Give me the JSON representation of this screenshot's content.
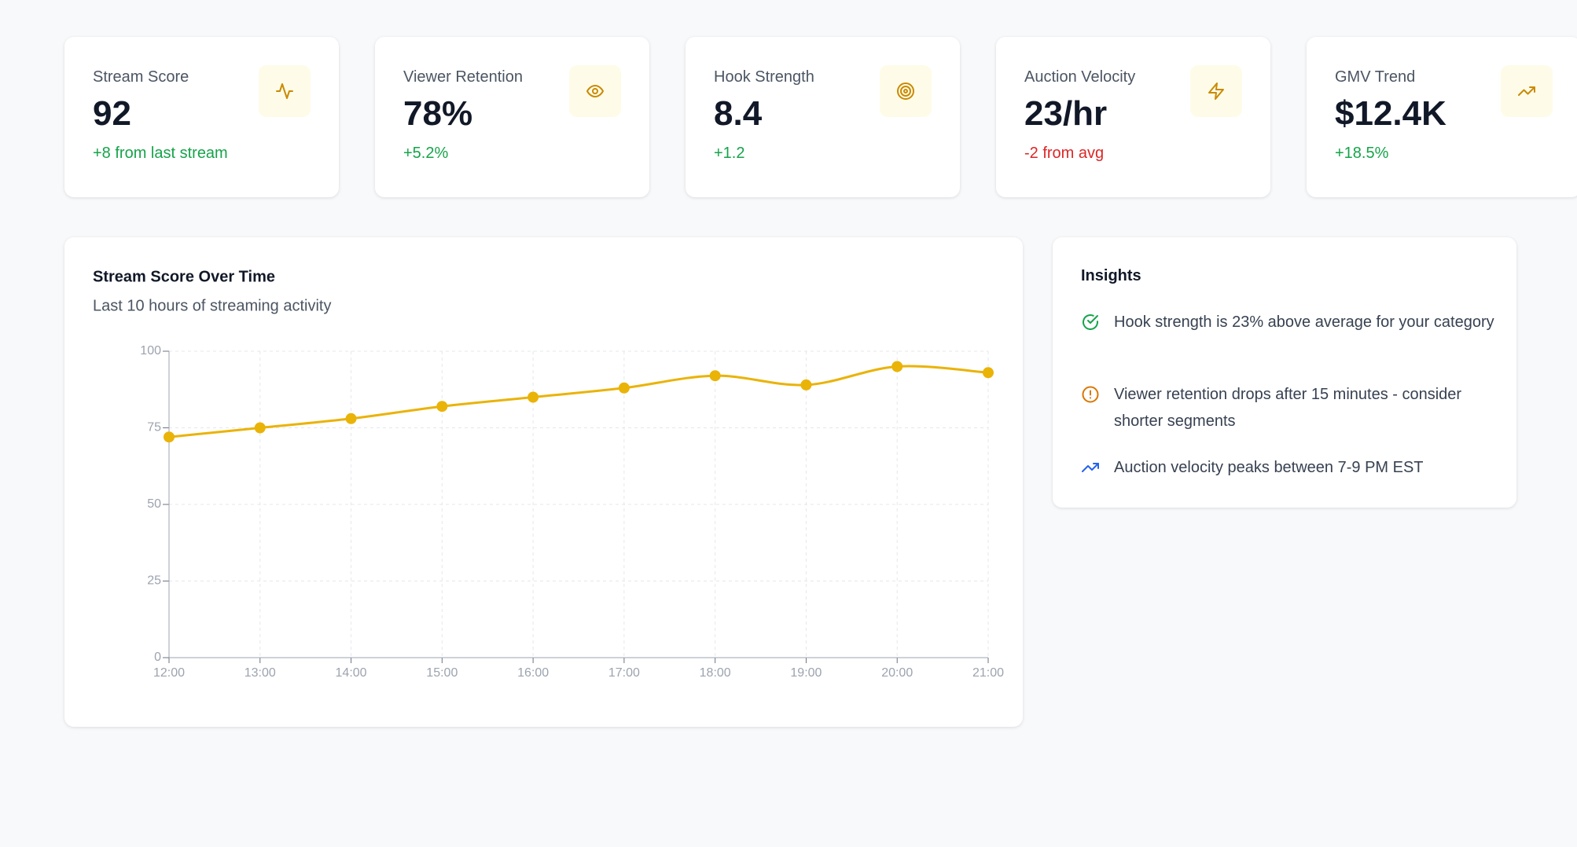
{
  "kpis": [
    {
      "label": "Stream Score",
      "value": "92",
      "delta": "+8 from last stream",
      "delta_color": "#16a34a"
    },
    {
      "label": "Viewer Retention",
      "value": "78%",
      "delta": "+5.2%",
      "delta_color": "#16a34a"
    },
    {
      "label": "Hook Strength",
      "value": "8.4",
      "delta": "+1.2",
      "delta_color": "#16a34a"
    },
    {
      "label": "Auction Velocity",
      "value": "23/hr",
      "delta": "-2 from avg",
      "delta_color": "#dc2626"
    },
    {
      "label": "GMV Trend",
      "value": "$12.4K",
      "delta": "+18.5%",
      "delta_color": "#16a34a"
    }
  ],
  "chart_data": {
    "type": "line",
    "title": "Stream Score Over Time",
    "subtitle": "Last 10 hours of streaming activity",
    "categories": [
      "12:00",
      "13:00",
      "14:00",
      "15:00",
      "16:00",
      "17:00",
      "18:00",
      "19:00",
      "20:00",
      "21:00"
    ],
    "values": [
      72,
      75,
      78,
      82,
      85,
      88,
      92,
      89,
      95,
      93
    ],
    "color": "#eab308",
    "ylim": [
      0,
      100
    ],
    "yticks": [
      0,
      25,
      50,
      75,
      100
    ],
    "grid": true
  },
  "insights": {
    "title": "Insights",
    "items": [
      "Hook strength is 23% above average for your category",
      "Viewer retention drops after 15 minutes - consider shorter segments",
      "Auction velocity peaks between 7-9 PM EST"
    ]
  }
}
